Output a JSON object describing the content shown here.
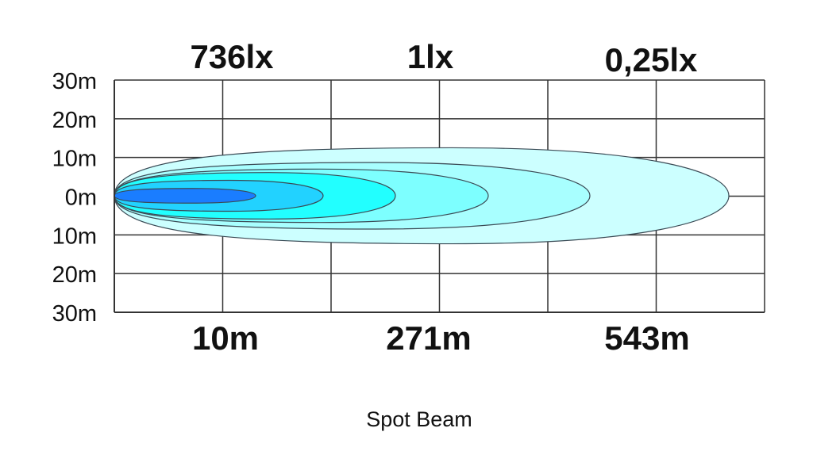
{
  "chart_data": {
    "type": "isolux-contour",
    "title": "Spot Beam",
    "top_labels": [
      "736lx",
      "1lx",
      "0,25lx"
    ],
    "bottom_labels": [
      "10m",
      "271m",
      "543m"
    ],
    "y_tick_labels": [
      "30m",
      "20m",
      "10m",
      "0m",
      "10m",
      "20m",
      "30m"
    ],
    "ylim": [
      -30,
      30
    ],
    "grid": true,
    "contours": [
      {
        "color": "#ccffff",
        "half_width_m": 12.4
      },
      {
        "color": "#a8ffff",
        "half_width_m": 8.6
      },
      {
        "color": "#7dffff",
        "half_width_m": 6.9
      },
      {
        "color": "#22ffff",
        "half_width_m": 6.0
      },
      {
        "color": "#22d2ff",
        "half_width_m": 4.0
      },
      {
        "color": "#1a7dff",
        "half_width_m": 1.9
      }
    ]
  }
}
